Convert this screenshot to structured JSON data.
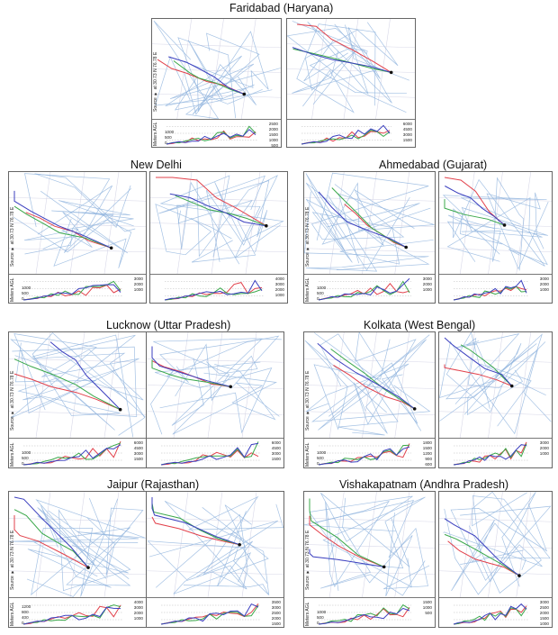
{
  "source_label": "Source ★ at 30.73 N 76.78 E",
  "height_axis": "Meters AGL",
  "colors": {
    "red": "#e2414b",
    "blue": "#3b3fbf",
    "green": "#3aa84a",
    "map": "#8fb3dd"
  },
  "cities": [
    {
      "name": "Faridabad (Haryana)",
      "ticksL": [
        "1000",
        "500",
        "0"
      ],
      "ticksA": [
        "2500",
        "2000",
        "1500",
        "1000",
        "500"
      ],
      "ticksB": [
        "6000",
        "4500",
        "3000",
        "1500"
      ]
    },
    {
      "name": "New Delhi",
      "ticksL": [
        "1000",
        "500",
        "0"
      ],
      "ticksA": [
        "3000",
        "2000",
        "1000"
      ],
      "ticksB": [
        "4000",
        "3000",
        "2000",
        "1000"
      ]
    },
    {
      "name": "Ahmedabad (Gujarat)",
      "ticksL": [
        "1000",
        "500",
        "0"
      ],
      "ticksA": [
        "3000",
        "2000",
        "1000"
      ],
      "ticksB": [
        "3000",
        "2000",
        "1000"
      ]
    },
    {
      "name": "Lucknow (Uttar Pradesh)",
      "ticksL": [
        "1000",
        "500",
        "0"
      ],
      "ticksA": [
        "6000",
        "4500",
        "3000",
        "1500"
      ],
      "ticksB": [
        "6000",
        "4500",
        "3000",
        "1500"
      ]
    },
    {
      "name": "Kolkata (West Bengal)",
      "ticksL": [
        "1000",
        "500",
        "0"
      ],
      "ticksA": [
        "1800",
        "1500",
        "1200",
        "900",
        "600"
      ],
      "ticksB": [
        "3000",
        "2000",
        "1000"
      ]
    },
    {
      "name": "Jaipur (Rajasthan)",
      "ticksL": [
        "1200",
        "800",
        "400",
        "0"
      ],
      "ticksA": [
        "4000",
        "3000",
        "2000",
        "1000"
      ],
      "ticksB": [
        "3500",
        "3000",
        "2500",
        "2000",
        "1500",
        "1000",
        "500"
      ]
    },
    {
      "name": "Vishakapatnam (Andhra Pradesh)",
      "ticksL": [
        "1000",
        "500",
        "0"
      ],
      "ticksA": [
        "1500",
        "1000",
        "500"
      ],
      "ticksB": [
        "3000",
        "2500",
        "2000",
        "1500",
        "1000",
        "500"
      ]
    }
  ]
}
